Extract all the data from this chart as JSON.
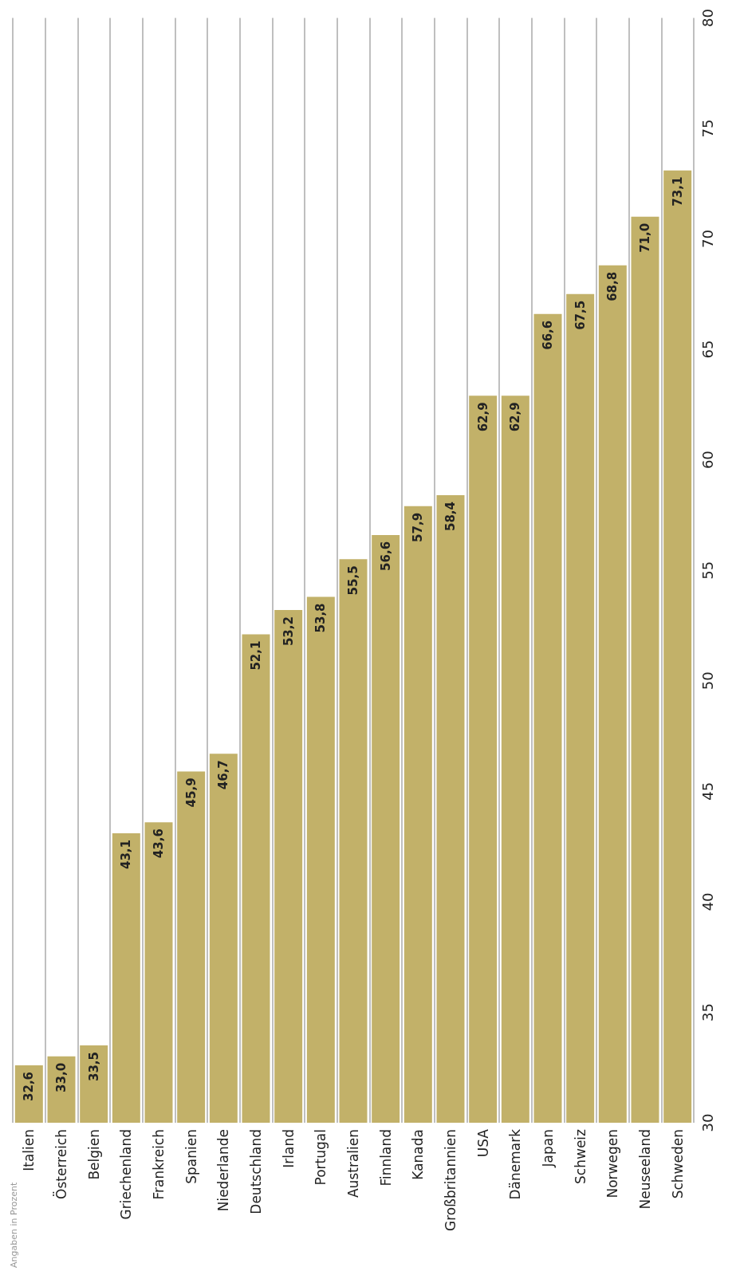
{
  "chart_data": {
    "type": "bar",
    "categories": [
      "Italien",
      "Österreich",
      "Belgien",
      "Griechenland",
      "Frankreich",
      "Spanien",
      "Niederlande",
      "Deutschland",
      "Irland",
      "Portugal",
      "Australien",
      "Finnland",
      "Kanada",
      "Großbritannien",
      "USA",
      "Dänemark",
      "Japan",
      "Schweiz",
      "Norwegen",
      "Neuseeland",
      "Schweden"
    ],
    "values": [
      32.6,
      33.0,
      33.5,
      43.1,
      43.6,
      45.9,
      46.7,
      52.1,
      53.2,
      53.8,
      55.5,
      56.6,
      57.9,
      58.4,
      62.9,
      62.9,
      66.6,
      67.5,
      68.8,
      71.0,
      73.1
    ],
    "value_labels": [
      "32,6",
      "33,0",
      "33,5",
      "43,1",
      "43,6",
      "45,9",
      "46,7",
      "52,1",
      "53,2",
      "53,8",
      "55,5",
      "56,6",
      "57,9",
      "58,4",
      "62,9",
      "62,9",
      "66,6",
      "67,5",
      "68,8",
      "71,0",
      "73,1"
    ],
    "color": "#c2b169",
    "ylim": [
      30,
      80
    ],
    "yticks": [
      30,
      35,
      40,
      45,
      50,
      55,
      60,
      65,
      70,
      75,
      80
    ],
    "grid": "x",
    "annotations": [
      "Angaben in Prozent"
    ]
  }
}
